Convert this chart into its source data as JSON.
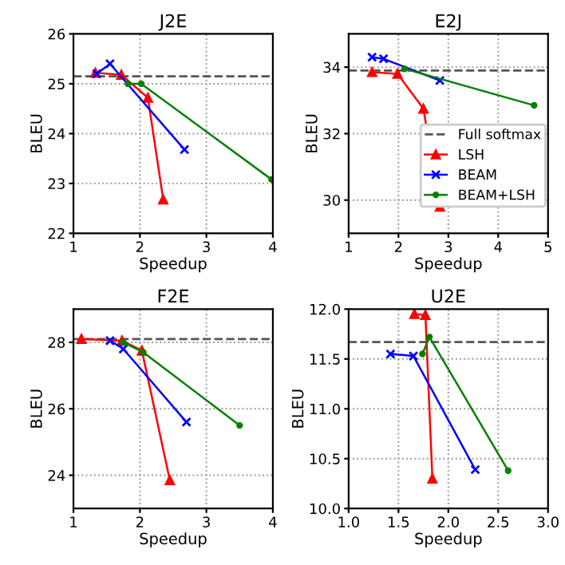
{
  "chart_data": [
    {
      "type": "line",
      "title": "J2E",
      "xlabel": "Speedup",
      "ylabel": "BLEU",
      "xlim": [
        1,
        4
      ],
      "xticks": [
        1,
        2,
        3,
        4
      ],
      "ylim": [
        22,
        26
      ],
      "yticks": [
        22,
        23,
        24,
        25,
        26
      ],
      "grid": true,
      "ref_lines": [
        {
          "axis": "y",
          "value": 25.15,
          "color": "#555555",
          "line_style": "dashed"
        }
      ],
      "series": [
        {
          "color": "#ff0000",
          "marker": "triangle",
          "x": [
            1.33,
            1.72,
            2.12,
            2.35
          ],
          "values": [
            25.22,
            25.18,
            24.72,
            22.68
          ]
        },
        {
          "color": "#0000ff",
          "marker": "cross",
          "x": [
            1.35,
            1.55,
            2.67
          ],
          "values": [
            25.2,
            25.4,
            23.68
          ]
        },
        {
          "color": "#008000",
          "marker": "circle",
          "x": [
            1.82,
            2.02,
            3.98
          ],
          "values": [
            25.0,
            25.0,
            23.08
          ]
        }
      ]
    },
    {
      "type": "line",
      "title": "E2J",
      "xlabel": "Speedup",
      "ylabel": "BLEU",
      "xlim": [
        1,
        5
      ],
      "xticks": [
        1,
        2,
        3,
        4,
        5
      ],
      "ylim": [
        29,
        35
      ],
      "yticks": [
        30,
        32,
        34
      ],
      "grid": true,
      "legend": "bottom right",
      "ref_lines": [
        {
          "axis": "y",
          "value": 33.9,
          "label": "Full softmax",
          "color": "#555555",
          "line_style": "dashed"
        }
      ],
      "series": [
        {
          "name": "LSH",
          "color": "#ff0000",
          "marker": "triangle",
          "x": [
            1.47,
            1.98,
            2.5,
            2.83
          ],
          "values": [
            33.85,
            33.8,
            32.75,
            29.8
          ]
        },
        {
          "name": "BEAM",
          "color": "#0000ff",
          "marker": "cross",
          "x": [
            1.47,
            1.7,
            2.83
          ],
          "values": [
            34.3,
            34.25,
            33.6
          ]
        },
        {
          "name": "BEAM+LSH",
          "color": "#008000",
          "marker": "circle",
          "x": [
            2.12,
            4.72
          ],
          "values": [
            33.95,
            32.85
          ]
        }
      ]
    },
    {
      "type": "line",
      "title": "F2E",
      "xlabel": "Speedup",
      "ylabel": "BLEU",
      "xlim": [
        1,
        4
      ],
      "xticks": [
        1,
        2,
        3,
        4
      ],
      "ylim": [
        23,
        29
      ],
      "yticks": [
        24,
        26,
        28
      ],
      "grid": true,
      "ref_lines": [
        {
          "axis": "y",
          "value": 28.1,
          "color": "#555555",
          "line_style": "dashed"
        }
      ],
      "series": [
        {
          "color": "#ff0000",
          "marker": "triangle",
          "x": [
            1.12,
            1.73,
            2.03,
            2.45
          ],
          "values": [
            28.1,
            28.05,
            27.75,
            23.85
          ]
        },
        {
          "color": "#0000ff",
          "marker": "cross",
          "x": [
            1.55,
            1.75,
            2.7
          ],
          "values": [
            28.05,
            27.8,
            25.6
          ]
        },
        {
          "color": "#008000",
          "marker": "circle",
          "x": [
            1.75,
            2.05,
            3.5
          ],
          "values": [
            28.0,
            27.7,
            25.5
          ]
        }
      ]
    },
    {
      "type": "line",
      "title": "U2E",
      "xlabel": "Speedup",
      "ylabel": "BLEU",
      "xlim": [
        1,
        3
      ],
      "xticks": [
        {
          "value": 1,
          "label": "1.0"
        },
        {
          "value": 1.5,
          "label": "1.5"
        },
        {
          "value": 2,
          "label": "2.0"
        },
        {
          "value": 2.5,
          "label": "2.5"
        },
        {
          "value": 3,
          "label": "3.0"
        }
      ],
      "ylim": [
        10,
        12
      ],
      "yticks": [
        {
          "value": 10,
          "label": "10.0"
        },
        {
          "value": 10.5,
          "label": "10.5"
        },
        {
          "value": 11,
          "label": "11.0"
        },
        {
          "value": 11.5,
          "label": "11.5"
        },
        {
          "value": 12,
          "label": "12.0"
        }
      ],
      "grid": true,
      "ref_lines": [
        {
          "axis": "y",
          "value": 11.67,
          "color": "#555555",
          "line_style": "dashed"
        }
      ],
      "series": [
        {
          "color": "#ff0000",
          "marker": "triangle",
          "x": [
            1.66,
            1.77,
            1.84
          ],
          "values": [
            11.95,
            11.94,
            10.3
          ]
        },
        {
          "color": "#0000ff",
          "marker": "cross",
          "x": [
            1.42,
            1.65,
            2.27
          ],
          "values": [
            11.55,
            11.53,
            10.39
          ]
        },
        {
          "color": "#008000",
          "marker": "circle",
          "x": [
            1.74,
            1.81,
            2.6
          ],
          "values": [
            11.55,
            11.72,
            10.38
          ]
        }
      ]
    }
  ]
}
